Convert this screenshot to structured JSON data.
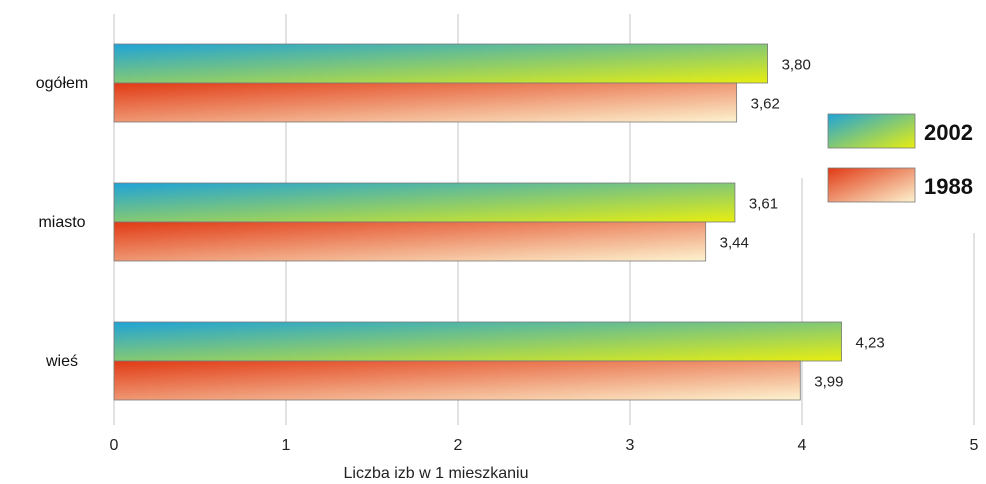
{
  "chart_data": {
    "type": "bar",
    "orientation": "horizontal",
    "categories": [
      "ogółem",
      "miasto",
      "wieś"
    ],
    "series": [
      {
        "name": "2002",
        "values": [
          3.8,
          3.61,
          4.23
        ],
        "labels": [
          "3,80",
          "3,61",
          "4,23"
        ],
        "gradient": [
          "#1fa3d8",
          "#e8ee10"
        ]
      },
      {
        "name": "1988",
        "values": [
          3.62,
          3.44,
          3.99
        ],
        "labels": [
          "3,62",
          "3,44",
          "3,99"
        ],
        "gradient": [
          "#e03a14",
          "#fdf3d0"
        ]
      }
    ],
    "xlabel": "Liczba izb w 1 mieszkaniu",
    "xlim": [
      0,
      5
    ],
    "xticks": [
      "0",
      "1",
      "2",
      "3",
      "4",
      "5"
    ],
    "grid": true,
    "legend_position": "right"
  }
}
